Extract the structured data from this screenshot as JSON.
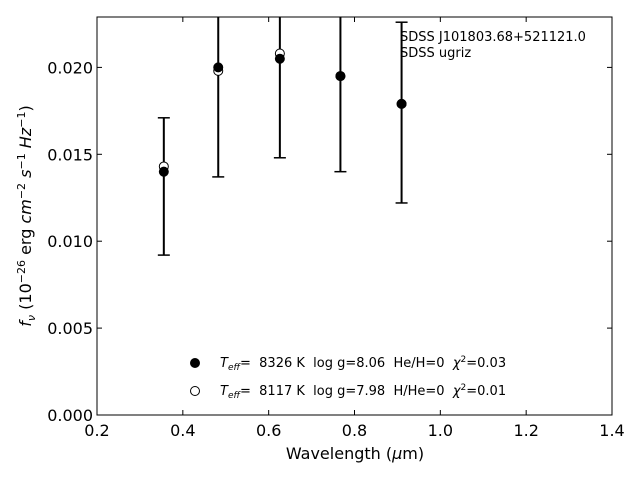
{
  "chart_data": {
    "type": "scatter",
    "annotation_lines": [
      "SDSS J101803.68+521121.0",
      "SDSS ugriz"
    ],
    "xlabel": "Wavelength (μm)",
    "ylabel": "f_ν (10^-26 erg cm^-2 s^-1 Hz^-1)",
    "xlim": [
      0.2,
      1.4
    ],
    "ylim": [
      0.0,
      0.0229
    ],
    "xticks": [
      0.2,
      0.4,
      0.6,
      0.8,
      1.0,
      1.2,
      1.4
    ],
    "xtick_labels": [
      "0.2",
      "0.4",
      "0.6",
      "0.8",
      "1.0",
      "1.2",
      "1.4"
    ],
    "yticks": [
      0.0,
      0.005,
      0.01,
      0.015,
      0.02
    ],
    "ytick_labels": [
      "0.000",
      "0.005",
      "0.010",
      "0.015",
      "0.020"
    ],
    "grid": false,
    "legend_position": "bottom-center",
    "observed": {
      "x": [
        0.3557,
        0.4825,
        0.6261,
        0.7672,
        0.9097
      ],
      "y": [
        0.014,
        0.0199,
        0.0205,
        0.0195,
        0.0179
      ],
      "err_low": [
        0.0092,
        0.0137,
        0.0148,
        0.014,
        0.0122
      ],
      "err_high": [
        0.0171,
        0.026,
        0.0262,
        0.025,
        0.0226
      ]
    },
    "series": [
      {
        "marker": "filled-circle",
        "legend": "T_eff=  8326 K  log g=8.06  He/H=0  χ²=0.03",
        "legend_parts": {
          "teff": "T",
          "sub": "eff",
          "mid": "=  8326 K  log g=8.06  He/H=0  ",
          "chi": "χ",
          "sup": "2",
          "end": "=0.03"
        },
        "x": [
          0.3557,
          0.4825,
          0.6261,
          0.7672,
          0.9097
        ],
        "y": [
          0.014,
          0.02,
          0.0205,
          0.0195,
          0.0179
        ]
      },
      {
        "marker": "open-circle",
        "legend": "T_eff=  8117 K  log g=7.98  H/He=0  χ²=0.01",
        "legend_parts": {
          "teff": "T",
          "sub": "eff",
          "mid": "=  8117 K  log g=7.98  H/He=0  ",
          "chi": "χ",
          "sup": "2",
          "end": "=0.01"
        },
        "x": [
          0.3557,
          0.4825,
          0.6261,
          0.7672,
          0.9097
        ],
        "y": [
          0.0143,
          0.0198,
          0.0208,
          0.0195,
          0.0179
        ]
      }
    ]
  }
}
